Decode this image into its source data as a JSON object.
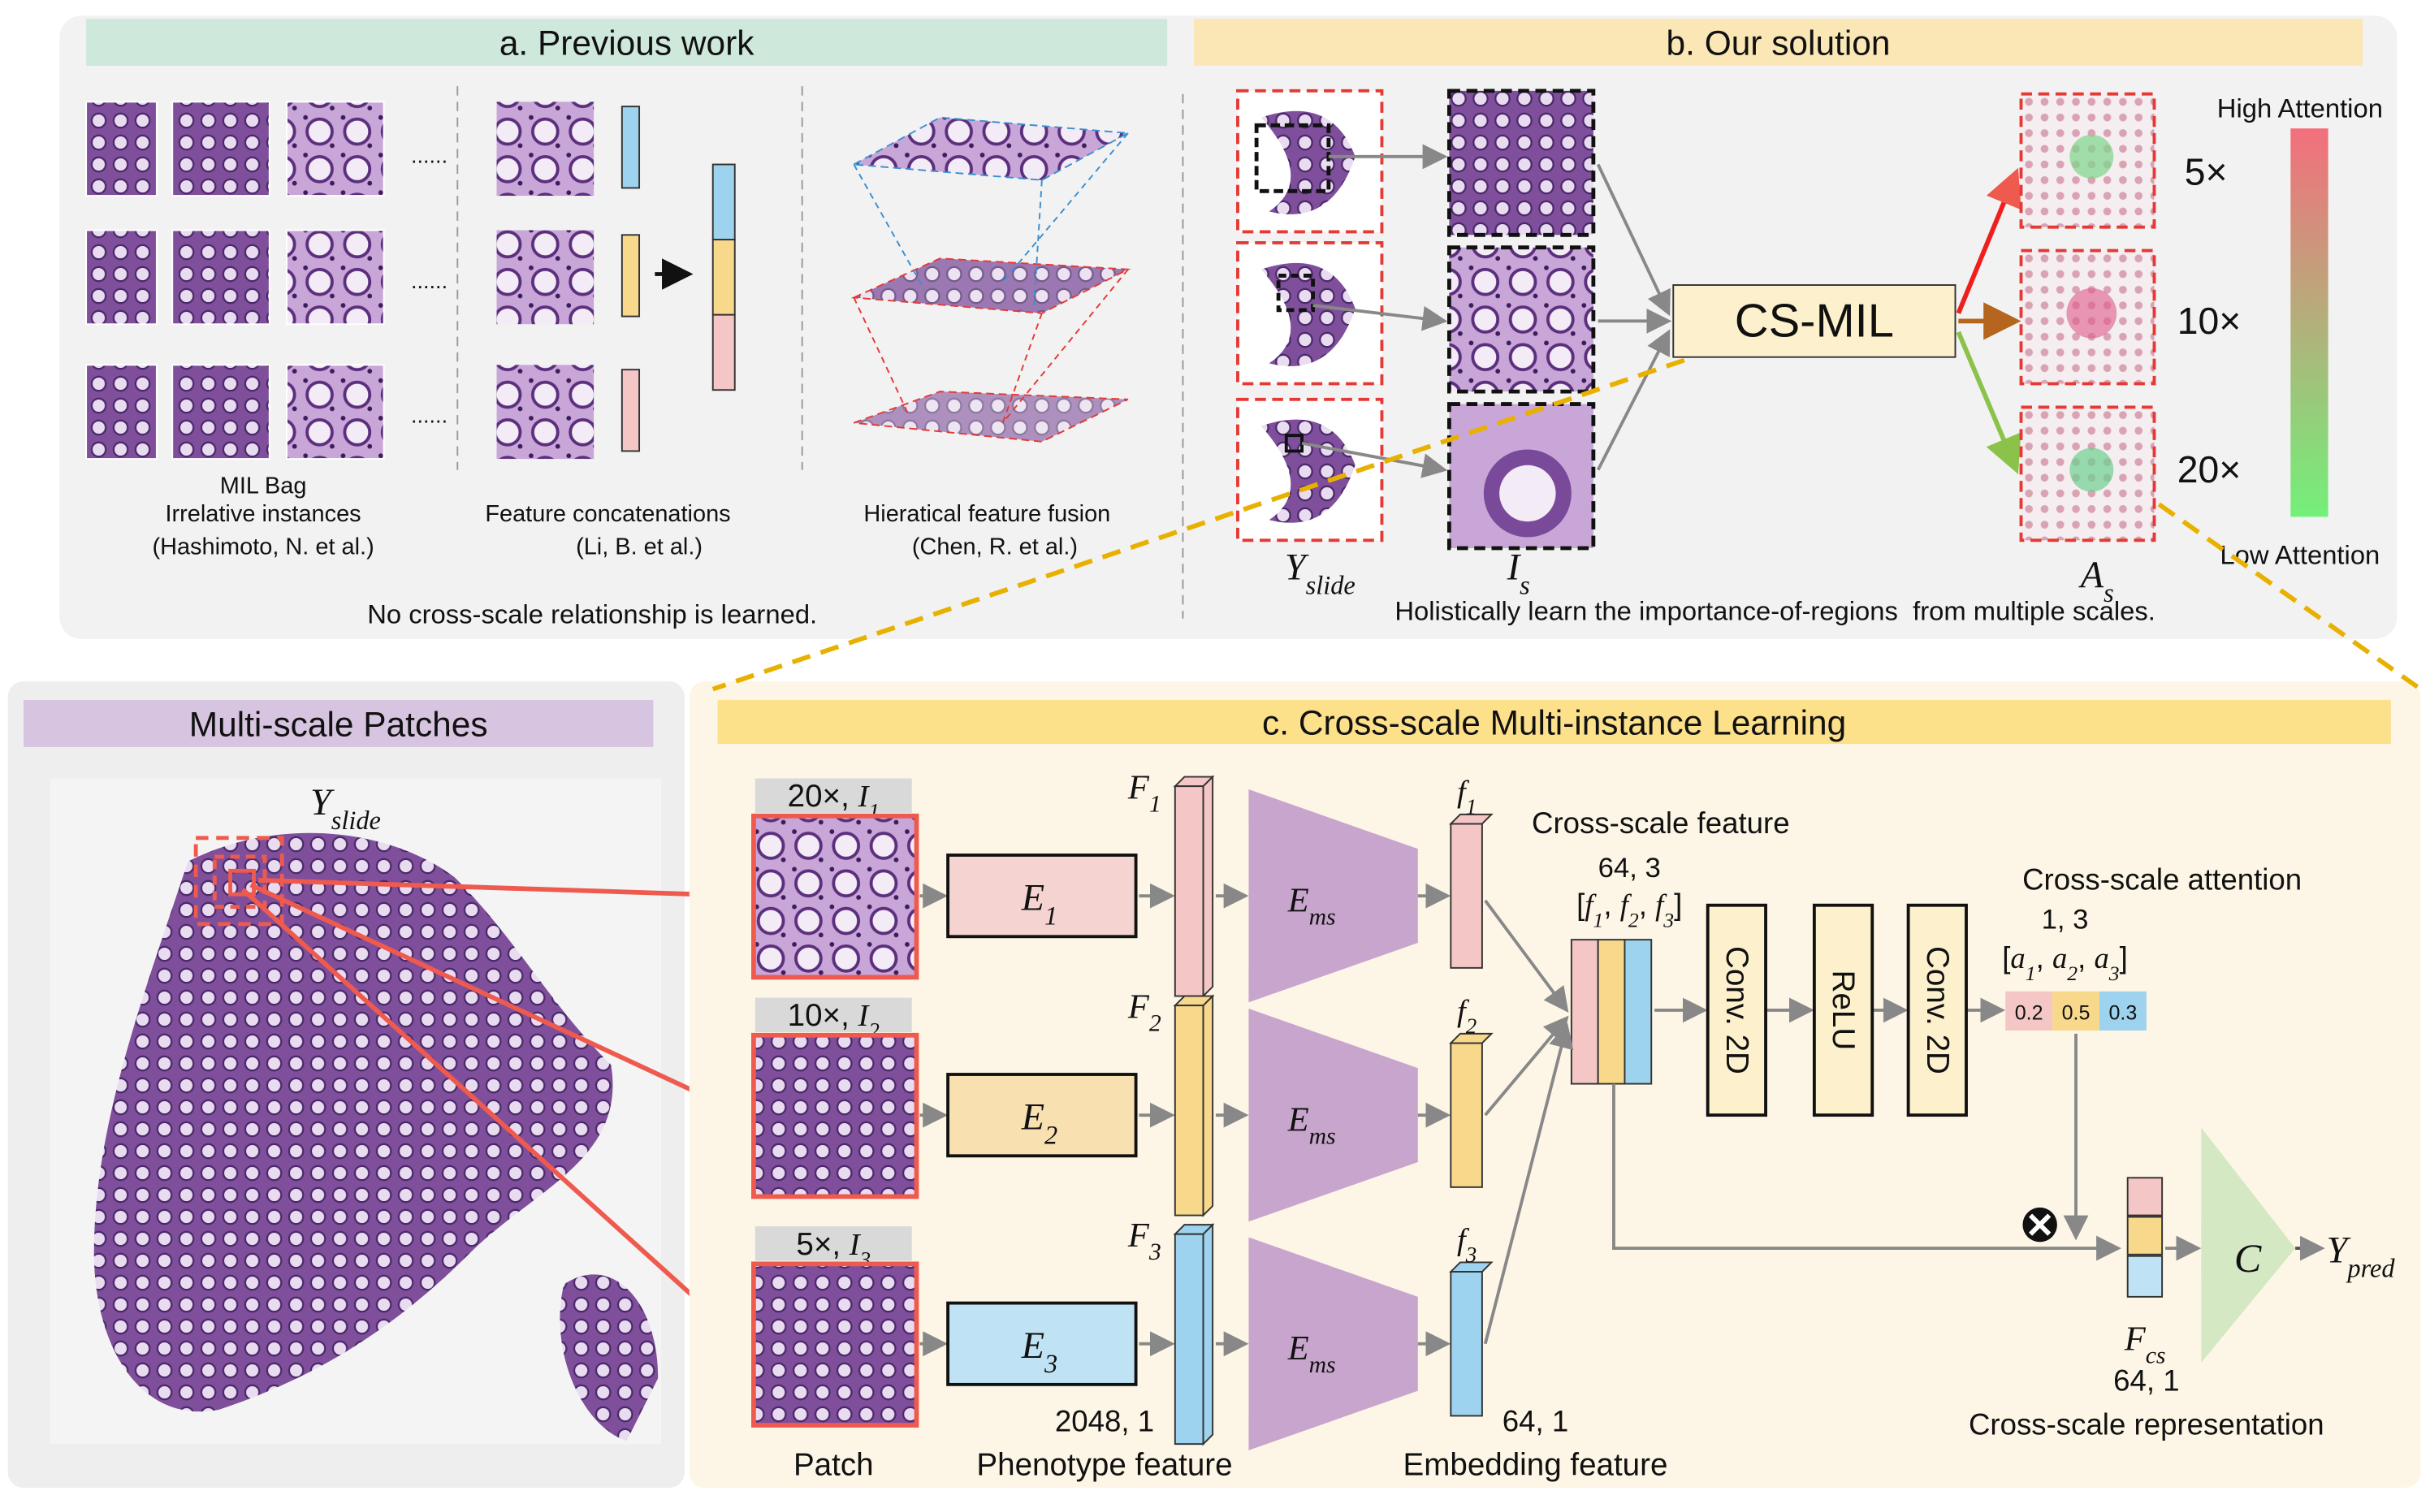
{
  "panel_a": {
    "title": "a. Previous work",
    "ellipses": [
      "......",
      "......",
      "......"
    ],
    "captions": [
      [
        "MIL Bag",
        "Irrelative instances",
        "(Hashimoto, N. et al.)"
      ],
      [
        "Feature concatenations",
        "(Li, B. et al.)"
      ],
      [
        "Hieratical feature fusion",
        "(Chen, R. et al.)"
      ]
    ],
    "note": "No cross-scale relationship is learned."
  },
  "panel_b": {
    "title": "b. Our solution",
    "model": "CS-MIL",
    "legend_high": "High Attention",
    "legend_low": "Low Attention",
    "scales": [
      "5×",
      "10×",
      "20×"
    ],
    "slide_label": [
      "Y",
      "slide"
    ],
    "instance_label": [
      "I",
      "s"
    ],
    "attention_label": [
      "A",
      "s"
    ],
    "note": "Holistically learn the importance-of-regions  from multiple scales."
  },
  "patches_panel": {
    "title": "Multi-scale Patches",
    "slide_label": [
      "Y",
      "slide"
    ]
  },
  "panel_c": {
    "title": "c. Cross-scale Multi-instance Learning",
    "patch_labels": [
      [
        "20×, ",
        "I",
        "1"
      ],
      [
        "10×, ",
        "I",
        "2"
      ],
      [
        "5×, ",
        "I",
        "3"
      ]
    ],
    "encoders": [
      [
        "E",
        "1"
      ],
      [
        "E",
        "2"
      ],
      [
        "E",
        "3"
      ]
    ],
    "phenotype_features": [
      [
        "F",
        "1"
      ],
      [
        "F",
        "2"
      ],
      [
        "F",
        "3"
      ]
    ],
    "ms_encoder": [
      [
        "E",
        "ms"
      ],
      [
        "E",
        "ms"
      ],
      [
        "E",
        "ms"
      ]
    ],
    "embedding_features": [
      [
        "f",
        "1"
      ],
      [
        "f",
        "2"
      ],
      [
        "f",
        "3"
      ]
    ],
    "cross_scale_feature": "Cross-scale feature",
    "cross_scale_feature_shape": "64, 3",
    "cross_scale_feature_vector": [
      "[",
      "f",
      "1",
      ", ",
      "f",
      "2",
      ", ",
      "f",
      "3",
      "]"
    ],
    "layers": [
      "Conv. 2D",
      "ReLU",
      "Conv. 2D"
    ],
    "attention_title": "Cross-scale attention",
    "attention_shape": "1, 3",
    "attention_vector": [
      "[",
      "a",
      "1",
      ", ",
      "a",
      "2",
      ", ",
      "a",
      "3",
      "]"
    ],
    "attention_values": [
      0.2,
      0.5,
      0.3
    ],
    "representation_label": [
      "F",
      "cs"
    ],
    "representation_shape": "64, 1",
    "representation_title": "Cross-scale representation",
    "classifier": "C",
    "prediction": [
      "Y",
      "pred"
    ],
    "patch_caption": "Patch",
    "phenotype_shape": "2048, 1",
    "phenotype_caption": "Phenotype feature",
    "embedding_shape": "64, 1",
    "embedding_caption": "Embedding feature"
  }
}
